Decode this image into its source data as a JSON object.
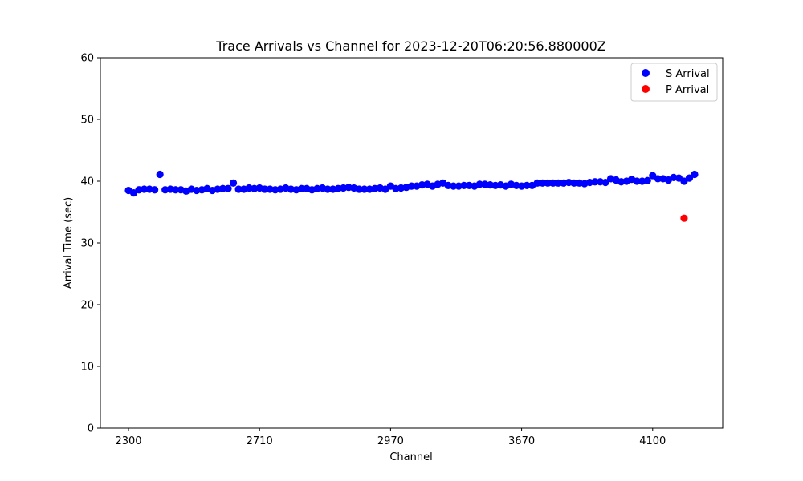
{
  "chart_data": {
    "type": "scatter",
    "title": "Trace Arrivals vs Channel for 2023-12-20T06:20:56.880000Z",
    "xlabel": "Channel",
    "ylabel": "Arrival Time (sec)",
    "ylim": [
      0,
      60
    ],
    "yticks": [
      "0",
      "10",
      "20",
      "30",
      "40",
      "50",
      "60"
    ],
    "xticks": [
      "2300",
      "2710",
      "2970",
      "3670",
      "4100"
    ],
    "grid": false,
    "legend_position": "top-right",
    "series": [
      {
        "name": "S Arrival",
        "color": "#0000ff",
        "values": [
          38.5,
          38.1,
          38.6,
          38.7,
          38.7,
          38.6,
          41.1,
          38.6,
          38.7,
          38.6,
          38.6,
          38.4,
          38.7,
          38.5,
          38.6,
          38.8,
          38.5,
          38.7,
          38.8,
          38.8,
          39.7,
          38.7,
          38.7,
          38.9,
          38.8,
          38.9,
          38.7,
          38.7,
          38.6,
          38.7,
          38.9,
          38.7,
          38.6,
          38.8,
          38.8,
          38.6,
          38.8,
          38.9,
          38.7,
          38.7,
          38.8,
          38.9,
          39.0,
          38.9,
          38.7,
          38.7,
          38.7,
          38.8,
          38.9,
          38.7,
          39.2,
          38.8,
          38.9,
          39.0,
          39.2,
          39.2,
          39.4,
          39.5,
          39.2,
          39.5,
          39.7,
          39.3,
          39.2,
          39.2,
          39.3,
          39.3,
          39.2,
          39.5,
          39.5,
          39.4,
          39.3,
          39.4,
          39.2,
          39.5,
          39.3,
          39.2,
          39.3,
          39.3,
          39.7,
          39.7,
          39.7,
          39.7,
          39.7,
          39.7,
          39.8,
          39.7,
          39.7,
          39.6,
          39.8,
          39.9,
          39.9,
          39.8,
          40.4,
          40.2,
          39.9,
          40.0,
          40.3,
          40.0,
          40.0,
          40.1,
          40.9,
          40.4,
          40.4,
          40.2,
          40.6,
          40.5,
          40.0,
          40.5,
          41.1
        ]
      },
      {
        "name": "P Arrival",
        "color": "#ff0000",
        "values": [
          34.0
        ],
        "position": 106
      }
    ]
  }
}
